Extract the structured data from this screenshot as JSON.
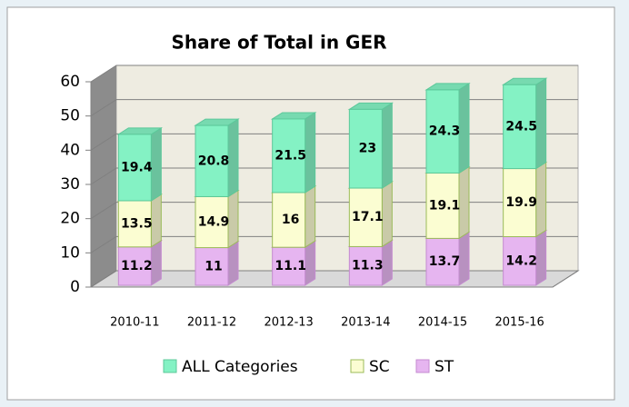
{
  "chart_data": {
    "type": "bar",
    "stacked": true,
    "title": "Share of Total in GER",
    "categories": [
      "2010-11",
      "2011-12",
      "2012-13",
      "2013-14",
      "2014-15",
      "2015-16"
    ],
    "series": [
      {
        "name": "ST",
        "color": "#e6b5f0",
        "values": [
          11.2,
          11,
          11.1,
          11.3,
          13.7,
          14.2
        ]
      },
      {
        "name": "SC",
        "color": "#fbfdd2",
        "values": [
          13.5,
          14.9,
          16,
          17.1,
          19.1,
          19.9
        ]
      },
      {
        "name": "ALL Categories",
        "color": "#84f2c4",
        "values": [
          19.4,
          20.8,
          21.5,
          23,
          24.3,
          24.5
        ]
      }
    ],
    "ylim": [
      0,
      60
    ],
    "yticks": [
      0,
      10,
      20,
      30,
      40,
      50,
      60
    ],
    "grid": true,
    "legend": "bottom"
  }
}
